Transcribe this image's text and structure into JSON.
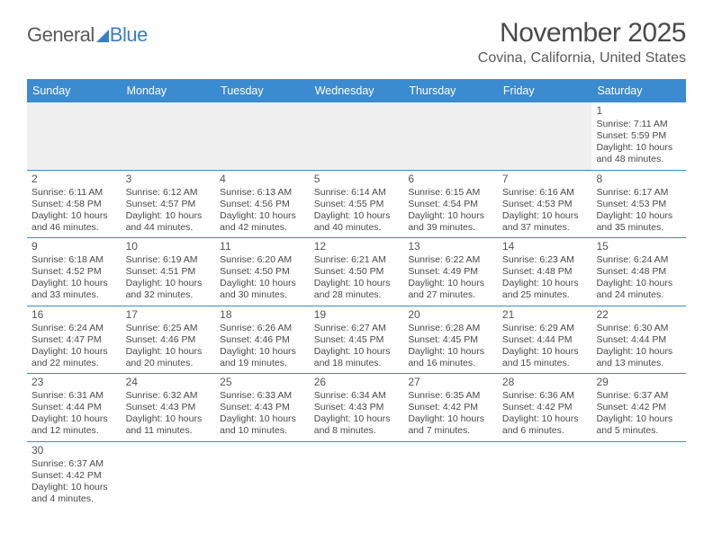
{
  "logo": {
    "word1": "General",
    "word2": "Blue"
  },
  "title": {
    "month_year": "November 2025",
    "location": "Covina, California, United States"
  },
  "calendar": {
    "weekdays": [
      "Sunday",
      "Monday",
      "Tuesday",
      "Wednesday",
      "Thursday",
      "Friday",
      "Saturday"
    ],
    "header_bg": "#3b8bd0",
    "header_fg": "#ffffff",
    "border_color": "#3b8bd0",
    "leading_bg": "#f0f0f0",
    "text_color": "#4a4a4a",
    "weeks": [
      [
        null,
        null,
        null,
        null,
        null,
        null,
        {
          "n": "1",
          "sr": "Sunrise: 7:11 AM",
          "ss": "Sunset: 5:59 PM",
          "d1": "Daylight: 10 hours",
          "d2": "and 48 minutes."
        }
      ],
      [
        {
          "n": "2",
          "sr": "Sunrise: 6:11 AM",
          "ss": "Sunset: 4:58 PM",
          "d1": "Daylight: 10 hours",
          "d2": "and 46 minutes."
        },
        {
          "n": "3",
          "sr": "Sunrise: 6:12 AM",
          "ss": "Sunset: 4:57 PM",
          "d1": "Daylight: 10 hours",
          "d2": "and 44 minutes."
        },
        {
          "n": "4",
          "sr": "Sunrise: 6:13 AM",
          "ss": "Sunset: 4:56 PM",
          "d1": "Daylight: 10 hours",
          "d2": "and 42 minutes."
        },
        {
          "n": "5",
          "sr": "Sunrise: 6:14 AM",
          "ss": "Sunset: 4:55 PM",
          "d1": "Daylight: 10 hours",
          "d2": "and 40 minutes."
        },
        {
          "n": "6",
          "sr": "Sunrise: 6:15 AM",
          "ss": "Sunset: 4:54 PM",
          "d1": "Daylight: 10 hours",
          "d2": "and 39 minutes."
        },
        {
          "n": "7",
          "sr": "Sunrise: 6:16 AM",
          "ss": "Sunset: 4:53 PM",
          "d1": "Daylight: 10 hours",
          "d2": "and 37 minutes."
        },
        {
          "n": "8",
          "sr": "Sunrise: 6:17 AM",
          "ss": "Sunset: 4:53 PM",
          "d1": "Daylight: 10 hours",
          "d2": "and 35 minutes."
        }
      ],
      [
        {
          "n": "9",
          "sr": "Sunrise: 6:18 AM",
          "ss": "Sunset: 4:52 PM",
          "d1": "Daylight: 10 hours",
          "d2": "and 33 minutes."
        },
        {
          "n": "10",
          "sr": "Sunrise: 6:19 AM",
          "ss": "Sunset: 4:51 PM",
          "d1": "Daylight: 10 hours",
          "d2": "and 32 minutes."
        },
        {
          "n": "11",
          "sr": "Sunrise: 6:20 AM",
          "ss": "Sunset: 4:50 PM",
          "d1": "Daylight: 10 hours",
          "d2": "and 30 minutes."
        },
        {
          "n": "12",
          "sr": "Sunrise: 6:21 AM",
          "ss": "Sunset: 4:50 PM",
          "d1": "Daylight: 10 hours",
          "d2": "and 28 minutes."
        },
        {
          "n": "13",
          "sr": "Sunrise: 6:22 AM",
          "ss": "Sunset: 4:49 PM",
          "d1": "Daylight: 10 hours",
          "d2": "and 27 minutes."
        },
        {
          "n": "14",
          "sr": "Sunrise: 6:23 AM",
          "ss": "Sunset: 4:48 PM",
          "d1": "Daylight: 10 hours",
          "d2": "and 25 minutes."
        },
        {
          "n": "15",
          "sr": "Sunrise: 6:24 AM",
          "ss": "Sunset: 4:48 PM",
          "d1": "Daylight: 10 hours",
          "d2": "and 24 minutes."
        }
      ],
      [
        {
          "n": "16",
          "sr": "Sunrise: 6:24 AM",
          "ss": "Sunset: 4:47 PM",
          "d1": "Daylight: 10 hours",
          "d2": "and 22 minutes."
        },
        {
          "n": "17",
          "sr": "Sunrise: 6:25 AM",
          "ss": "Sunset: 4:46 PM",
          "d1": "Daylight: 10 hours",
          "d2": "and 20 minutes."
        },
        {
          "n": "18",
          "sr": "Sunrise: 6:26 AM",
          "ss": "Sunset: 4:46 PM",
          "d1": "Daylight: 10 hours",
          "d2": "and 19 minutes."
        },
        {
          "n": "19",
          "sr": "Sunrise: 6:27 AM",
          "ss": "Sunset: 4:45 PM",
          "d1": "Daylight: 10 hours",
          "d2": "and 18 minutes."
        },
        {
          "n": "20",
          "sr": "Sunrise: 6:28 AM",
          "ss": "Sunset: 4:45 PM",
          "d1": "Daylight: 10 hours",
          "d2": "and 16 minutes."
        },
        {
          "n": "21",
          "sr": "Sunrise: 6:29 AM",
          "ss": "Sunset: 4:44 PM",
          "d1": "Daylight: 10 hours",
          "d2": "and 15 minutes."
        },
        {
          "n": "22",
          "sr": "Sunrise: 6:30 AM",
          "ss": "Sunset: 4:44 PM",
          "d1": "Daylight: 10 hours",
          "d2": "and 13 minutes."
        }
      ],
      [
        {
          "n": "23",
          "sr": "Sunrise: 6:31 AM",
          "ss": "Sunset: 4:44 PM",
          "d1": "Daylight: 10 hours",
          "d2": "and 12 minutes."
        },
        {
          "n": "24",
          "sr": "Sunrise: 6:32 AM",
          "ss": "Sunset: 4:43 PM",
          "d1": "Daylight: 10 hours",
          "d2": "and 11 minutes."
        },
        {
          "n": "25",
          "sr": "Sunrise: 6:33 AM",
          "ss": "Sunset: 4:43 PM",
          "d1": "Daylight: 10 hours",
          "d2": "and 10 minutes."
        },
        {
          "n": "26",
          "sr": "Sunrise: 6:34 AM",
          "ss": "Sunset: 4:43 PM",
          "d1": "Daylight: 10 hours",
          "d2": "and 8 minutes."
        },
        {
          "n": "27",
          "sr": "Sunrise: 6:35 AM",
          "ss": "Sunset: 4:42 PM",
          "d1": "Daylight: 10 hours",
          "d2": "and 7 minutes."
        },
        {
          "n": "28",
          "sr": "Sunrise: 6:36 AM",
          "ss": "Sunset: 4:42 PM",
          "d1": "Daylight: 10 hours",
          "d2": "and 6 minutes."
        },
        {
          "n": "29",
          "sr": "Sunrise: 6:37 AM",
          "ss": "Sunset: 4:42 PM",
          "d1": "Daylight: 10 hours",
          "d2": "and 5 minutes."
        }
      ],
      [
        {
          "n": "30",
          "sr": "Sunrise: 6:37 AM",
          "ss": "Sunset: 4:42 PM",
          "d1": "Daylight: 10 hours",
          "d2": "and 4 minutes."
        },
        null,
        null,
        null,
        null,
        null,
        null
      ]
    ]
  }
}
